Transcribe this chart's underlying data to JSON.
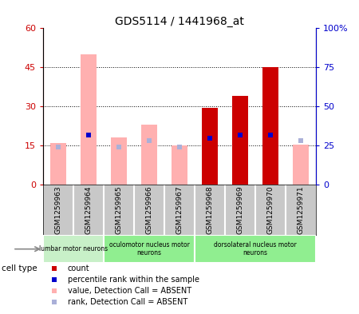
{
  "title": "GDS5114 / 1441968_at",
  "samples": [
    "GSM1259963",
    "GSM1259964",
    "GSM1259965",
    "GSM1259966",
    "GSM1259967",
    "GSM1259968",
    "GSM1259969",
    "GSM1259970",
    "GSM1259971"
  ],
  "count_values": [
    null,
    null,
    null,
    null,
    null,
    29.5,
    34.0,
    45.0,
    null
  ],
  "rank_values": [
    null,
    32.0,
    null,
    null,
    null,
    29.5,
    32.0,
    32.0,
    null
  ],
  "value_absent": [
    16.0,
    50.0,
    18.0,
    23.0,
    15.0,
    null,
    null,
    null,
    15.5
  ],
  "rank_absent": [
    24.0,
    null,
    24.0,
    28.0,
    24.0,
    null,
    null,
    null,
    28.0
  ],
  "ylim_left": [
    0,
    60
  ],
  "ylim_right": [
    0,
    100
  ],
  "yticks_left": [
    0,
    15,
    30,
    45,
    60
  ],
  "yticks_right": [
    0,
    25,
    50,
    75,
    100
  ],
  "ytick_labels_left": [
    "0",
    "15",
    "30",
    "45",
    "60"
  ],
  "ytick_labels_right": [
    "0",
    "25",
    "50",
    "75",
    "100%"
  ],
  "group_labels": [
    "lumbar motor neurons",
    "oculomotor nucleus motor\nneurons",
    "dorsolateral nucleus motor\nneurons"
  ],
  "group_starts": [
    0,
    2,
    5
  ],
  "group_ends": [
    2,
    5,
    9
  ],
  "group_colors": [
    "#c8f0c8",
    "#90ee90",
    "#90ee90"
  ],
  "color_count": "#cc0000",
  "color_rank": "#0000cc",
  "color_value_absent": "#ffb0b0",
  "color_rank_absent": "#aab0d8",
  "bar_width": 0.55,
  "background_color": "#ffffff",
  "tick_label_color_left": "#cc0000",
  "tick_label_color_right": "#0000cc",
  "sample_box_color": "#c8c8c8"
}
